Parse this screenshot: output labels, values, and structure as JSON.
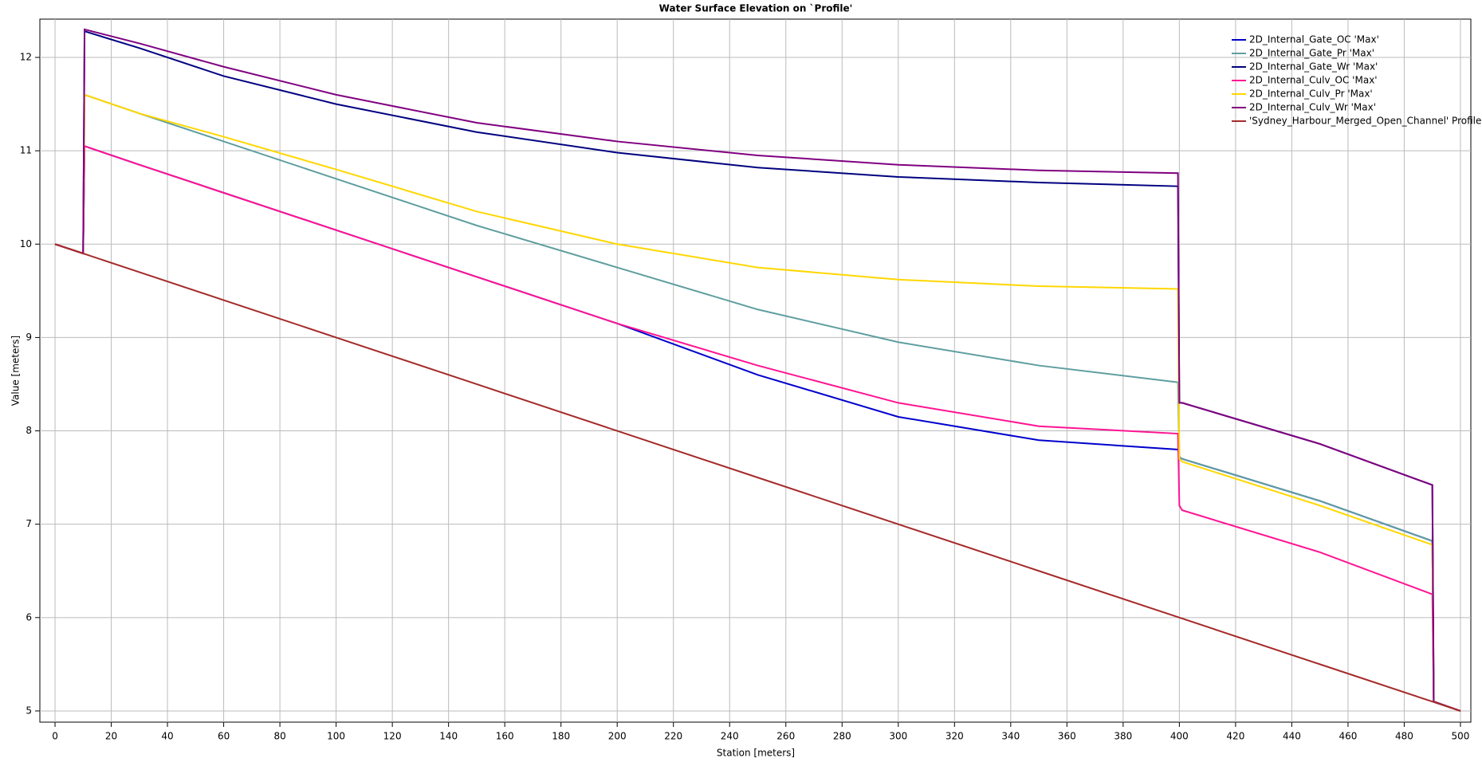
{
  "chart_data": {
    "type": "line",
    "title": "Water Surface Elevation on `Profile'",
    "xlabel": "Station [meters]",
    "ylabel": "Value [meters]",
    "x": [
      0,
      10,
      10.5,
      30,
      60,
      100,
      150,
      200,
      250,
      300,
      350,
      399.5,
      400,
      401,
      450,
      490,
      490.5,
      500
    ],
    "series": [
      {
        "name": "2D_Internal_Gate_OC 'Max'",
        "color": "#0000cd",
        "values": [
          10.0,
          9.9,
          11.05,
          10.85,
          10.55,
          10.15,
          9.65,
          9.15,
          8.6,
          8.15,
          7.9,
          7.8,
          7.72,
          7.7,
          7.25,
          6.82,
          5.1,
          5.0
        ]
      },
      {
        "name": "2D_Internal_Gate_Pr 'Max'",
        "color": "#5f9ea0",
        "values": [
          10.0,
          9.9,
          11.6,
          11.4,
          11.1,
          10.7,
          10.2,
          9.75,
          9.3,
          8.95,
          8.7,
          8.52,
          7.72,
          7.7,
          7.25,
          6.82,
          5.1,
          5.0
        ]
      },
      {
        "name": "2D_Internal_Gate_Wr 'Max'",
        "color": "#000080",
        "values": [
          10.0,
          9.9,
          12.28,
          12.1,
          11.8,
          11.5,
          11.2,
          10.98,
          10.82,
          10.72,
          10.66,
          10.62,
          8.3,
          8.3,
          7.86,
          7.42,
          5.1,
          5.0
        ]
      },
      {
        "name": "2D_Internal_Culv_OC 'Max'",
        "color": "#ff1493",
        "values": [
          10.0,
          9.9,
          11.05,
          10.85,
          10.55,
          10.15,
          9.65,
          9.15,
          8.7,
          8.3,
          8.05,
          7.97,
          7.2,
          7.15,
          6.7,
          6.25,
          5.1,
          5.0
        ]
      },
      {
        "name": "2D_Internal_Culv_Pr 'Max'",
        "color": "#ffd700",
        "values": [
          10.0,
          9.9,
          11.6,
          11.4,
          11.15,
          10.8,
          10.35,
          10.0,
          9.75,
          9.62,
          9.55,
          9.52,
          7.7,
          7.67,
          7.2,
          6.78,
          5.1,
          5.0
        ]
      },
      {
        "name": "2D_Internal_Culv_Wr 'Max'",
        "color": "#800080",
        "values": [
          10.0,
          9.9,
          12.3,
          12.15,
          11.9,
          11.6,
          11.3,
          11.1,
          10.95,
          10.85,
          10.79,
          10.76,
          8.3,
          8.3,
          7.86,
          7.42,
          5.1,
          5.0
        ]
      },
      {
        "name": "'Sydney_Harbour_Merged_Open_Channel' Profile",
        "color": "#a52a2a",
        "values": [
          10.0,
          9.9,
          9.895,
          9.7,
          9.4,
          9.0,
          8.5,
          8.0,
          7.5,
          7.0,
          6.5,
          6.005,
          6.0,
          5.99,
          5.5,
          5.1,
          5.095,
          5.0
        ]
      }
    ],
    "xlim": [
      -5.4,
      503.7
    ],
    "ylim": [
      4.88,
      12.41
    ],
    "xticks": [
      0,
      20,
      40,
      60,
      80,
      100,
      120,
      140,
      160,
      180,
      200,
      220,
      240,
      260,
      280,
      300,
      320,
      340,
      360,
      380,
      400,
      420,
      440,
      460,
      480,
      500
    ],
    "yticks": [
      5,
      6,
      7,
      8,
      9,
      10,
      11,
      12
    ],
    "grid": true,
    "legend": "upper right"
  }
}
